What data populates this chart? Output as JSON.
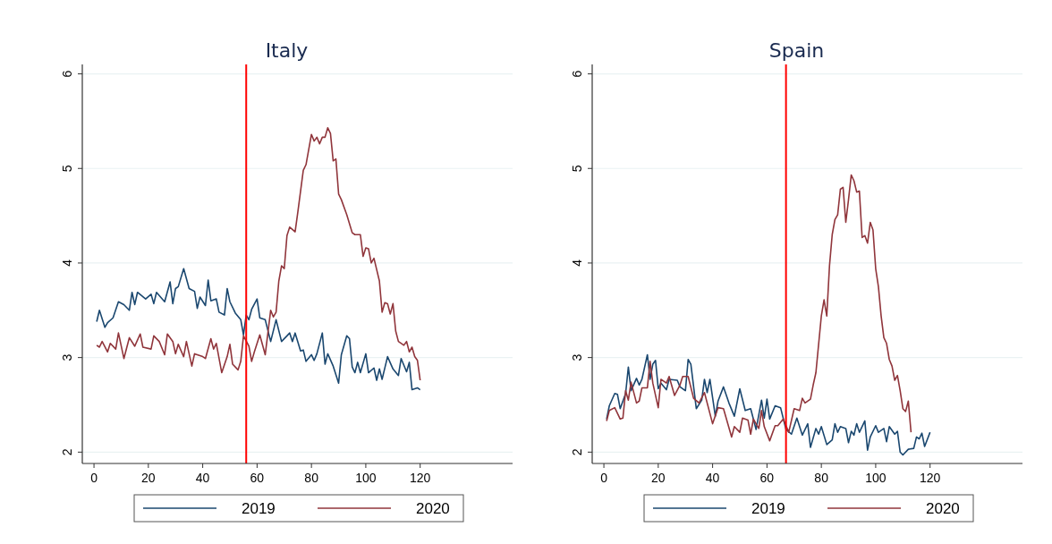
{
  "chart_data": [
    {
      "type": "line",
      "title": "Italy",
      "xlim": [
        -4.3,
        154
      ],
      "xticks": [
        0,
        20,
        40,
        60,
        80,
        100,
        120
      ],
      "ylim": [
        1.88,
        6.1
      ],
      "yticks": [
        2,
        3,
        4,
        5,
        6
      ],
      "grid": "y",
      "legend": "bottom",
      "ref_lines": [
        {
          "axis": "x",
          "value": 56,
          "color": "#ff0000"
        }
      ],
      "series": [
        {
          "name": "2019",
          "color": "#1a476f",
          "x": [
            1,
            2,
            4,
            5,
            7,
            9,
            11,
            13,
            14,
            15,
            16,
            19,
            21,
            22,
            23,
            26,
            28,
            29,
            30,
            31,
            33,
            35,
            37,
            38,
            39,
            41,
            42,
            43,
            45,
            46,
            48,
            49,
            50,
            52,
            54,
            55,
            56,
            57,
            58,
            60,
            61,
            63,
            65,
            67,
            69,
            71,
            72,
            73,
            74,
            76,
            77,
            78,
            80,
            81,
            82,
            84,
            85,
            86,
            88,
            90,
            91,
            93,
            94,
            95,
            96,
            97,
            98,
            100,
            101,
            103,
            104,
            105,
            106,
            108,
            110,
            112,
            113,
            115,
            116,
            117,
            119,
            120
          ],
          "values": [
            3.38,
            3.5,
            3.32,
            3.37,
            3.42,
            3.59,
            3.56,
            3.5,
            3.69,
            3.56,
            3.69,
            3.62,
            3.67,
            3.57,
            3.69,
            3.59,
            3.8,
            3.57,
            3.73,
            3.75,
            3.94,
            3.73,
            3.7,
            3.52,
            3.64,
            3.55,
            3.82,
            3.6,
            3.62,
            3.48,
            3.45,
            3.73,
            3.59,
            3.47,
            3.4,
            3.24,
            3.45,
            3.4,
            3.51,
            3.62,
            3.42,
            3.4,
            3.17,
            3.4,
            3.17,
            3.23,
            3.26,
            3.17,
            3.26,
            3.07,
            3.08,
            2.96,
            3.03,
            2.97,
            3.04,
            3.26,
            2.93,
            3.04,
            2.91,
            2.73,
            3.03,
            3.23,
            3.2,
            2.9,
            2.84,
            2.95,
            2.84,
            3.04,
            2.84,
            2.89,
            2.76,
            2.88,
            2.77,
            3.01,
            2.88,
            2.81,
            2.99,
            2.85,
            2.95,
            2.66,
            2.68,
            2.66
          ]
        },
        {
          "name": "2020",
          "color": "#90353b",
          "x": [
            1,
            2,
            3,
            5,
            6,
            8,
            9,
            11,
            13,
            15,
            17,
            18,
            21,
            22,
            24,
            26,
            27,
            29,
            30,
            31,
            33,
            34,
            36,
            37,
            40,
            41,
            43,
            44,
            45,
            47,
            49,
            50,
            51,
            53,
            54,
            55,
            57,
            58,
            59,
            61,
            63,
            65,
            66,
            67,
            68,
            69,
            70,
            71,
            72,
            74,
            75,
            77,
            78,
            80,
            81,
            82,
            83,
            84,
            85,
            86,
            87,
            88,
            89,
            90,
            91,
            93,
            95,
            96,
            98,
            99,
            100,
            101,
            102,
            103,
            105,
            106,
            107,
            108,
            109,
            110,
            111,
            112,
            114,
            115,
            116,
            117,
            118,
            119,
            120
          ],
          "values": [
            3.13,
            3.11,
            3.17,
            3.06,
            3.15,
            3.09,
            3.26,
            2.99,
            3.21,
            3.12,
            3.25,
            3.11,
            3.09,
            3.23,
            3.17,
            3.03,
            3.25,
            3.17,
            3.04,
            3.14,
            3.01,
            3.17,
            2.91,
            3.04,
            3.01,
            2.99,
            3.2,
            3.09,
            3.15,
            2.84,
            3.01,
            3.14,
            2.93,
            2.87,
            2.96,
            3.23,
            3.12,
            2.96,
            3.06,
            3.24,
            3.03,
            3.5,
            3.43,
            3.48,
            3.81,
            3.97,
            3.94,
            4.29,
            4.38,
            4.33,
            4.54,
            4.98,
            5.04,
            5.36,
            5.29,
            5.33,
            5.26,
            5.33,
            5.33,
            5.43,
            5.37,
            5.08,
            5.1,
            4.73,
            4.67,
            4.51,
            4.32,
            4.3,
            4.3,
            4.07,
            4.16,
            4.15,
            4.0,
            4.05,
            3.81,
            3.48,
            3.58,
            3.57,
            3.46,
            3.57,
            3.28,
            3.17,
            3.13,
            3.17,
            3.06,
            3.11,
            3.01,
            2.97,
            2.76
          ]
        }
      ]
    },
    {
      "type": "line",
      "title": "Spain",
      "xlim": [
        -4.3,
        154
      ],
      "xticks": [
        0,
        20,
        40,
        60,
        80,
        100,
        120
      ],
      "ylim": [
        1.88,
        6.1
      ],
      "yticks": [
        2,
        3,
        4,
        5,
        6
      ],
      "grid": "y",
      "legend": "bottom",
      "ref_lines": [
        {
          "axis": "x",
          "value": 67,
          "color": "#ff0000"
        }
      ],
      "series": [
        {
          "name": "2019",
          "color": "#1a476f",
          "x": [
            1,
            2,
            4,
            5,
            6,
            8,
            9,
            10,
            12,
            13,
            14,
            16,
            17,
            18,
            19,
            20,
            21,
            23,
            24,
            27,
            28,
            30,
            31,
            32,
            34,
            36,
            37,
            38,
            39,
            41,
            42,
            44,
            46,
            48,
            50,
            52,
            54,
            56,
            58,
            59,
            60,
            61,
            63,
            65,
            67,
            69,
            71,
            73,
            75,
            76,
            78,
            79,
            80,
            82,
            84,
            85,
            86,
            87,
            89,
            90,
            91,
            92,
            93,
            94,
            96,
            97,
            98,
            100,
            101,
            103,
            104,
            105,
            107,
            108,
            109,
            110,
            112,
            114,
            115,
            116,
            117,
            118,
            120
          ],
          "values": [
            2.35,
            2.49,
            2.62,
            2.61,
            2.46,
            2.62,
            2.9,
            2.65,
            2.78,
            2.71,
            2.77,
            3.03,
            2.77,
            2.93,
            2.97,
            2.67,
            2.73,
            2.66,
            2.77,
            2.76,
            2.69,
            2.65,
            2.98,
            2.93,
            2.46,
            2.55,
            2.77,
            2.63,
            2.77,
            2.38,
            2.54,
            2.69,
            2.52,
            2.38,
            2.67,
            2.44,
            2.46,
            2.24,
            2.55,
            2.36,
            2.56,
            2.35,
            2.49,
            2.47,
            2.24,
            2.19,
            2.36,
            2.18,
            2.3,
            2.05,
            2.25,
            2.19,
            2.27,
            2.08,
            2.13,
            2.3,
            2.21,
            2.27,
            2.25,
            2.1,
            2.22,
            2.18,
            2.3,
            2.21,
            2.33,
            2.02,
            2.16,
            2.28,
            2.21,
            2.25,
            2.11,
            2.27,
            2.19,
            2.22,
            2.0,
            1.97,
            2.03,
            2.04,
            2.16,
            2.14,
            2.2,
            2.06,
            2.21
          ]
        },
        {
          "name": "2020",
          "color": "#90353b",
          "x": [
            1,
            2,
            4,
            6,
            7,
            8,
            9,
            10,
            12,
            13,
            14,
            16,
            17,
            18,
            20,
            21,
            23,
            24,
            26,
            28,
            29,
            31,
            33,
            35,
            37,
            40,
            42,
            44,
            47,
            48,
            50,
            51,
            53,
            54,
            55,
            57,
            58,
            59,
            61,
            63,
            64,
            66,
            68,
            70,
            72,
            73,
            74,
            76,
            77,
            78,
            80,
            81,
            82,
            83,
            84,
            85,
            86,
            87,
            88,
            89,
            90,
            91,
            92,
            93,
            94,
            95,
            96,
            97,
            98,
            99,
            100,
            101,
            102,
            103,
            104,
            105,
            106,
            107,
            108,
            109,
            110,
            111,
            112,
            113
          ],
          "values": [
            2.33,
            2.44,
            2.47,
            2.35,
            2.36,
            2.65,
            2.55,
            2.74,
            2.52,
            2.54,
            2.68,
            2.68,
            2.96,
            2.73,
            2.47,
            2.77,
            2.73,
            2.8,
            2.6,
            2.71,
            2.8,
            2.8,
            2.57,
            2.52,
            2.63,
            2.3,
            2.47,
            2.46,
            2.16,
            2.27,
            2.21,
            2.36,
            2.34,
            2.19,
            2.35,
            2.25,
            2.44,
            2.27,
            2.12,
            2.28,
            2.28,
            2.35,
            2.21,
            2.46,
            2.44,
            2.57,
            2.52,
            2.56,
            2.71,
            2.84,
            3.44,
            3.61,
            3.44,
            3.97,
            4.3,
            4.46,
            4.51,
            4.78,
            4.8,
            4.43,
            4.67,
            4.93,
            4.87,
            4.75,
            4.76,
            4.27,
            4.29,
            4.21,
            4.43,
            4.35,
            3.94,
            3.75,
            3.44,
            3.21,
            3.15,
            2.98,
            2.91,
            2.76,
            2.81,
            2.65,
            2.46,
            2.43,
            2.54,
            2.21
          ]
        }
      ]
    }
  ]
}
